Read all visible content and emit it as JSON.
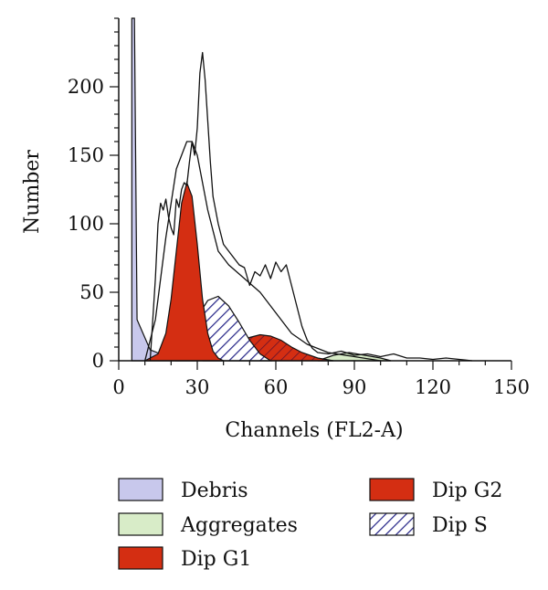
{
  "chart_data": {
    "type": "area",
    "title": "",
    "xlabel": "Channels (FL2-A)",
    "ylabel": "Number",
    "xlim": [
      0,
      150
    ],
    "ylim": [
      0,
      250
    ],
    "x_ticks": [
      0,
      30,
      60,
      90,
      120,
      150
    ],
    "y_ticks": [
      0,
      50,
      100,
      150,
      200
    ],
    "grid": false,
    "legend_position": "bottom",
    "legend": [
      {
        "name": "Debris",
        "color": "#c8c8ec",
        "pattern": "solid"
      },
      {
        "name": "Aggregates",
        "color": "#d8ecc8",
        "pattern": "solid"
      },
      {
        "name": "Dip G1",
        "color": "#d42e12",
        "pattern": "solid"
      },
      {
        "name": "Dip G2",
        "color": "#d42e12",
        "pattern": "solid"
      },
      {
        "name": "Dip S",
        "color": "#2a2a8a",
        "pattern": "diagonal-hatch"
      }
    ],
    "series": [
      {
        "name": "Dip G1",
        "color": "#d42e12",
        "x": [
          10,
          15,
          18,
          20,
          22,
          24,
          26,
          28,
          30,
          32,
          34,
          36,
          38,
          40
        ],
        "y": [
          0,
          5,
          20,
          45,
          80,
          115,
          130,
          120,
          85,
          45,
          20,
          7,
          2,
          0
        ]
      },
      {
        "name": "Dip G2",
        "color": "#d42e12",
        "x": [
          32,
          38,
          44,
          50,
          54,
          58,
          62,
          66,
          70,
          76,
          82
        ],
        "y": [
          0,
          4,
          11,
          17,
          19,
          18,
          15,
          10,
          6,
          2,
          0
        ]
      },
      {
        "name": "Dip S",
        "color": "#2a2a8a",
        "x": [
          22,
          26,
          30,
          34,
          38,
          42,
          46,
          50,
          54,
          58
        ],
        "y": [
          0,
          15,
          32,
          44,
          47,
          40,
          28,
          15,
          5,
          0
        ]
      },
      {
        "name": "Aggregates",
        "color": "#d8ecc8",
        "x": [
          76,
          82,
          88,
          94,
          100,
          104
        ],
        "y": [
          0,
          4,
          6,
          4,
          2,
          0
        ]
      },
      {
        "name": "Debris",
        "color": "#c8c8ec",
        "x": [
          5,
          6,
          7,
          12,
          20,
          30
        ],
        "y": [
          250,
          250,
          30,
          8,
          2,
          0
        ]
      },
      {
        "name": "Model fit",
        "color": "#111111",
        "x": [
          10,
          14,
          18,
          22,
          26,
          28,
          30,
          34,
          38,
          42,
          48,
          54,
          60,
          66,
          72,
          80,
          90,
          100
        ],
        "y": [
          0,
          30,
          90,
          140,
          160,
          160,
          150,
          110,
          80,
          70,
          60,
          50,
          35,
          20,
          12,
          6,
          3,
          0
        ]
      },
      {
        "name": "Raw data",
        "color": "#111111",
        "x": [
          12,
          14,
          15,
          16,
          17,
          18,
          19,
          20,
          21,
          22,
          23,
          24,
          25,
          26,
          27,
          28,
          29,
          30,
          31,
          32,
          33,
          34,
          35,
          36,
          38,
          40,
          42,
          44,
          46,
          48,
          50,
          52,
          54,
          56,
          58,
          60,
          62,
          64,
          66,
          68,
          70,
          72,
          74,
          76,
          80,
          85,
          90,
          95,
          100,
          105,
          110,
          115,
          120,
          125,
          130,
          135
        ],
        "y": [
          0,
          60,
          100,
          115,
          110,
          118,
          105,
          97,
          92,
          118,
          112,
          125,
          130,
          128,
          145,
          160,
          150,
          170,
          210,
          225,
          205,
          175,
          145,
          120,
          100,
          85,
          80,
          75,
          70,
          68,
          55,
          65,
          62,
          70,
          60,
          72,
          65,
          70,
          55,
          40,
          25,
          15,
          9,
          6,
          5,
          7,
          4,
          5,
          3,
          5,
          2,
          2,
          1,
          2,
          1,
          0
        ]
      }
    ]
  }
}
